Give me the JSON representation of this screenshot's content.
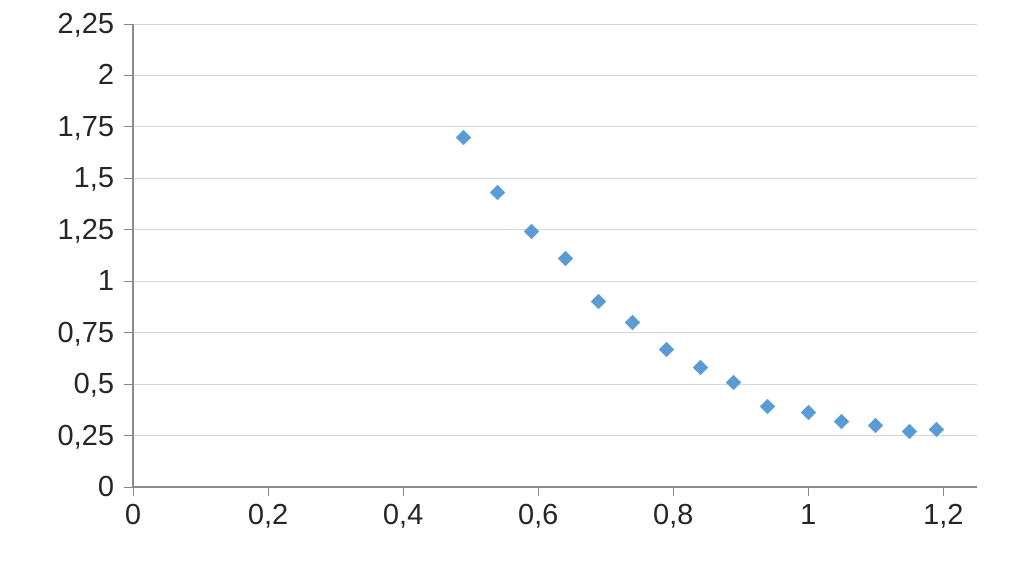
{
  "chart_data": {
    "type": "scatter",
    "title": "",
    "xlabel": "",
    "ylabel": "",
    "xlim": [
      0,
      1.25
    ],
    "ylim": [
      0,
      2.25
    ],
    "grid": "horizontal-only",
    "legend_position": "none",
    "decimal_separator": ",",
    "x_ticks": [
      {
        "value": 0,
        "label": "0"
      },
      {
        "value": 0.2,
        "label": "0,2"
      },
      {
        "value": 0.4,
        "label": "0,4"
      },
      {
        "value": 0.6,
        "label": "0,6"
      },
      {
        "value": 0.8,
        "label": "0,8"
      },
      {
        "value": 1,
        "label": "1"
      },
      {
        "value": 1.2,
        "label": "1,2"
      }
    ],
    "y_ticks": [
      {
        "value": 0,
        "label": "0"
      },
      {
        "value": 0.25,
        "label": "0,25"
      },
      {
        "value": 0.5,
        "label": "0,5"
      },
      {
        "value": 0.75,
        "label": "0,75"
      },
      {
        "value": 1,
        "label": "1"
      },
      {
        "value": 1.25,
        "label": "1,25"
      },
      {
        "value": 1.5,
        "label": "1,5"
      },
      {
        "value": 1.75,
        "label": "1,75"
      },
      {
        "value": 2,
        "label": "2"
      },
      {
        "value": 2.25,
        "label": "2,25"
      }
    ],
    "series": [
      {
        "name": "series-1",
        "marker": "diamond",
        "color": "#5B9BD5",
        "points": [
          [
            0.49,
            1.7
          ],
          [
            0.54,
            1.43
          ],
          [
            0.59,
            1.24
          ],
          [
            0.64,
            1.11
          ],
          [
            0.69,
            0.9
          ],
          [
            0.74,
            0.8
          ],
          [
            0.79,
            0.67
          ],
          [
            0.84,
            0.58
          ],
          [
            0.89,
            0.51
          ],
          [
            0.94,
            0.39
          ],
          [
            1.0,
            0.36
          ],
          [
            1.05,
            0.32
          ],
          [
            1.1,
            0.3
          ],
          [
            1.15,
            0.27
          ],
          [
            1.19,
            0.28
          ]
        ]
      }
    ]
  },
  "colors": {
    "marker": "#5B9BD5",
    "gridline": "#D6D6D6",
    "axis": "#8A8A8A",
    "text": "#262626",
    "background": "#FFFFFF"
  }
}
